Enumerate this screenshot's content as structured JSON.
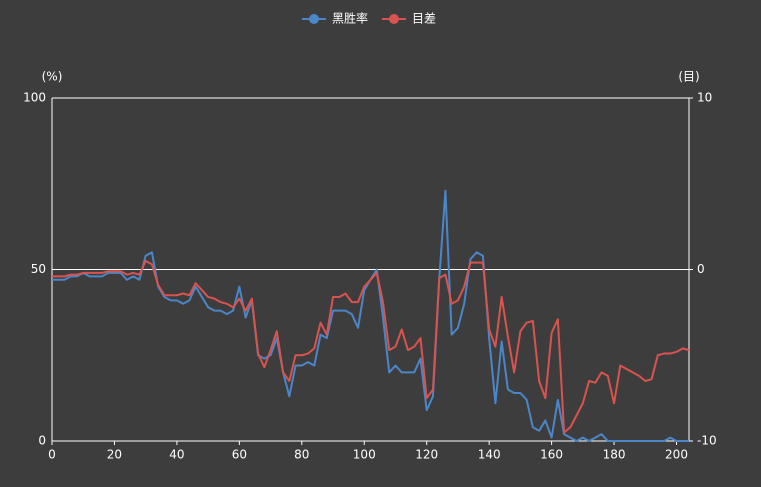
{
  "chart_data": {
    "type": "line",
    "y_label": "(%)",
    "y2_label": "(目)",
    "x": [
      0,
      2,
      4,
      6,
      8,
      10,
      12,
      14,
      16,
      18,
      20,
      22,
      24,
      26,
      28,
      30,
      32,
      34,
      36,
      38,
      40,
      42,
      44,
      46,
      48,
      50,
      52,
      54,
      56,
      58,
      60,
      62,
      64,
      66,
      68,
      70,
      72,
      74,
      76,
      78,
      80,
      82,
      84,
      86,
      88,
      90,
      92,
      94,
      96,
      98,
      100,
      102,
      104,
      106,
      108,
      110,
      112,
      114,
      116,
      118,
      120,
      122,
      124,
      126,
      128,
      130,
      132,
      134,
      136,
      138,
      140,
      142,
      144,
      146,
      148,
      150,
      152,
      154,
      156,
      158,
      160,
      162,
      164,
      166,
      168,
      170,
      172,
      174,
      176,
      178,
      180,
      182,
      184,
      186,
      188,
      190,
      192,
      194,
      196,
      198,
      200,
      202,
      204
    ],
    "series": [
      {
        "name": "黑胜率",
        "color": "#4a86c8",
        "axis": "y",
        "values": [
          47,
          47,
          47,
          48,
          48,
          49,
          48,
          48,
          48,
          49,
          49,
          49,
          47,
          48,
          47,
          54,
          55,
          45,
          42,
          41,
          41,
          40,
          41,
          45,
          42,
          39,
          38,
          38,
          37,
          38,
          45,
          36,
          41,
          25,
          24,
          25,
          30,
          20,
          13,
          22,
          22,
          23,
          22,
          31,
          30,
          38,
          38,
          38,
          37,
          33,
          44,
          47,
          50,
          36,
          20,
          22,
          20,
          20,
          20,
          24,
          9,
          13,
          47,
          73,
          31,
          33,
          40,
          53,
          55,
          54,
          30,
          11,
          29,
          15,
          14,
          14,
          12,
          4,
          3,
          6,
          1,
          12,
          2,
          1,
          0,
          1,
          0,
          1,
          2,
          0,
          0,
          0,
          0,
          0,
          0,
          0,
          0,
          0,
          0,
          1,
          0,
          0,
          0
        ]
      },
      {
        "name": "目差",
        "color": "#d9534f",
        "axis": "y2",
        "values": [
          -0.4,
          -0.4,
          -0.4,
          -0.3,
          -0.3,
          -0.2,
          -0.2,
          -0.2,
          -0.2,
          -0.1,
          -0.1,
          -0.1,
          -0.3,
          -0.2,
          -0.3,
          0.5,
          0.3,
          -0.9,
          -1.5,
          -1.5,
          -1.5,
          -1.4,
          -1.5,
          -0.8,
          -1.2,
          -1.6,
          -1.7,
          -1.9,
          -2,
          -2.2,
          -1.7,
          -2.4,
          -1.7,
          -4.9,
          -5.7,
          -4.7,
          -3.6,
          -6,
          -6.5,
          -5,
          -5,
          -4.9,
          -4.6,
          -3.1,
          -3.8,
          -1.6,
          -1.6,
          -1.4,
          -1.9,
          -1.9,
          -1,
          -0.6,
          -0.2,
          -1.9,
          -4.7,
          -4.5,
          -3.5,
          -4.7,
          -4.5,
          -4,
          -7.5,
          -7,
          -0.5,
          -0.3,
          -2,
          -1.8,
          -1,
          0.4,
          0.4,
          0.4,
          -3.5,
          -4.5,
          -1.6,
          -3.9,
          -6,
          -3.6,
          -3.1,
          -3,
          -6.5,
          -7.5,
          -3.7,
          -2.9,
          -9.5,
          -9.2,
          -8.5,
          -7.8,
          -6.5,
          -6.6,
          -6,
          -6.2,
          -7.8,
          -5.6,
          -5.8,
          -6,
          -6.2,
          -6.5,
          -6.4,
          -5,
          -4.9,
          -4.9,
          -4.8,
          -4.6,
          -4.7
        ]
      }
    ],
    "xlim": [
      0,
      204
    ],
    "xticks": [
      0,
      20,
      40,
      60,
      80,
      100,
      120,
      140,
      160,
      180,
      200
    ],
    "ylim": [
      0,
      100
    ],
    "yticks": [
      0,
      50,
      100
    ],
    "y2lim": [
      -10,
      10
    ],
    "y2ticks": [
      -10,
      0,
      10
    ],
    "legend": "top"
  }
}
